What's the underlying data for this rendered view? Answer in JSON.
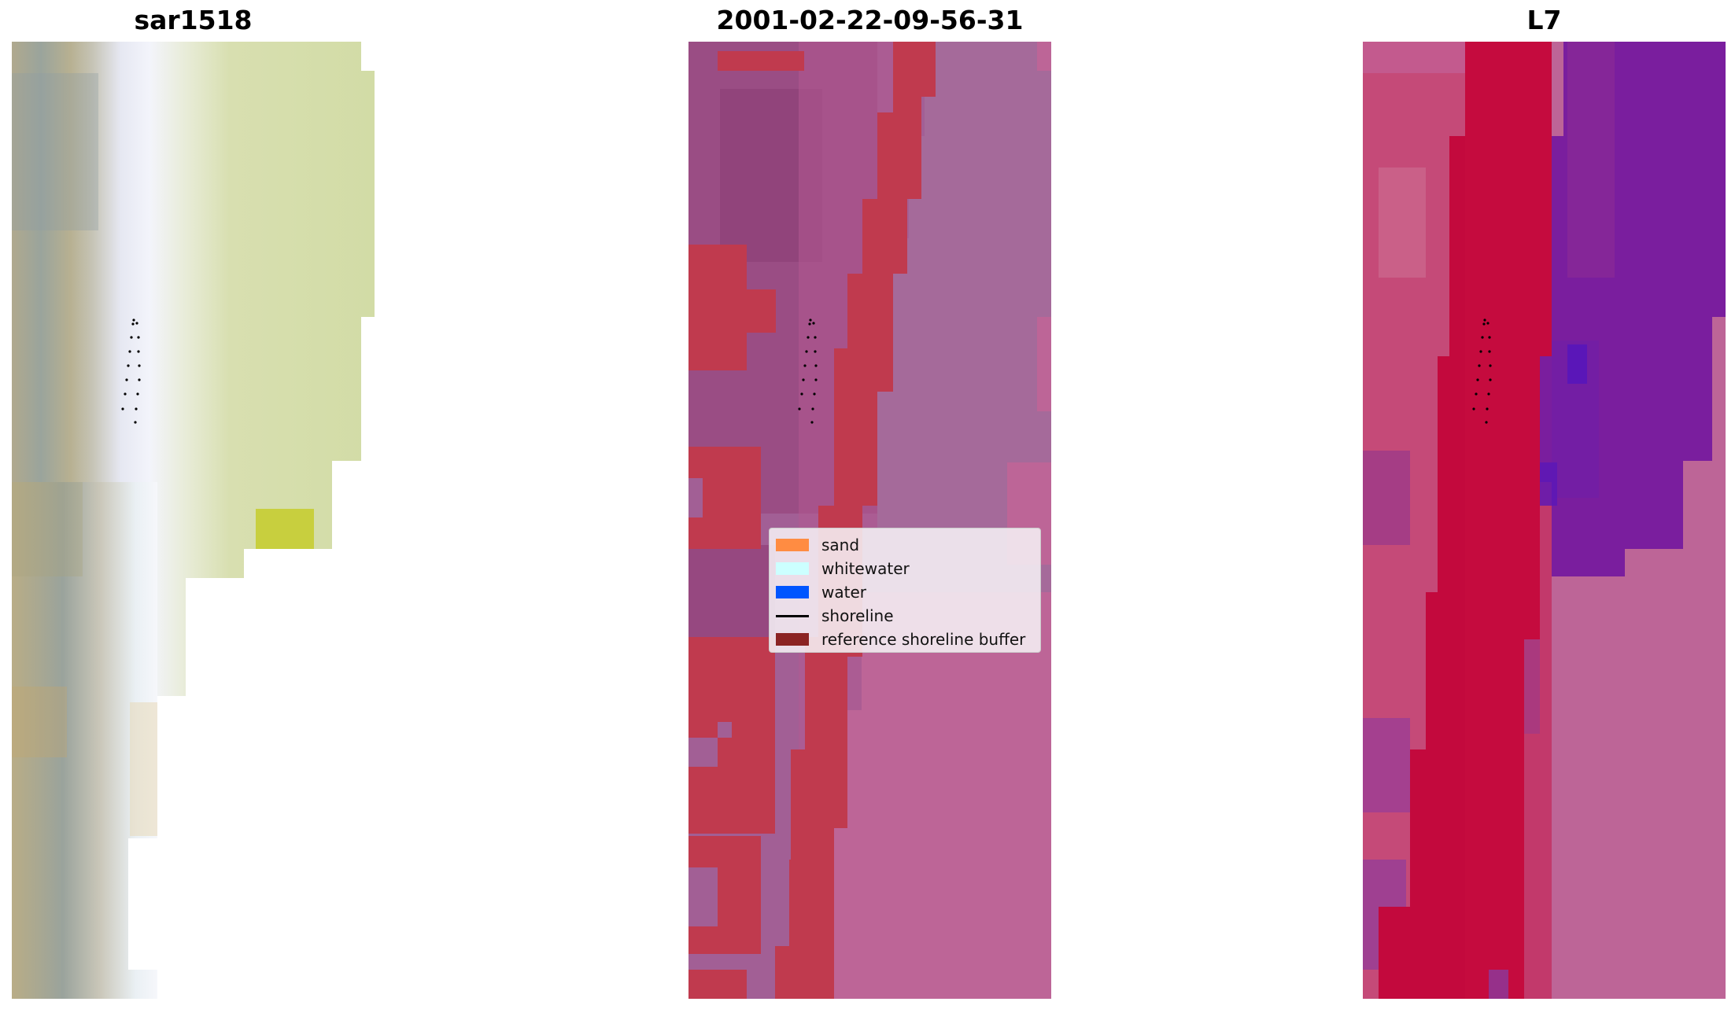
{
  "panels": [
    {
      "title": "sar1518"
    },
    {
      "title": "2001-02-22-09-56-31"
    },
    {
      "title": "L7"
    }
  ],
  "legend": {
    "items": [
      {
        "label": "sand",
        "kind": "patch",
        "color": "#ff8c42"
      },
      {
        "label": "whitewater",
        "kind": "patch",
        "color": "#ccffff"
      },
      {
        "label": "water",
        "kind": "patch",
        "color": "#0055ff"
      },
      {
        "label": "shoreline",
        "kind": "line",
        "color": "#000000"
      },
      {
        "label": "reference shoreline buffer",
        "kind": "patch",
        "color": "#8b2323"
      }
    ]
  },
  "colors": {
    "rgb_sand": "#c8b88a",
    "rgb_vegetation": "#d6dfa8",
    "rgb_whitewater": "#eef2f8",
    "class_buffer": "#c03a4e",
    "class_land": "#a25fa0",
    "class_pink": "#bd6597",
    "nir_red": "#c3093d",
    "nir_purple": "#7a1e9e",
    "nir_pink": "#bd6597"
  }
}
